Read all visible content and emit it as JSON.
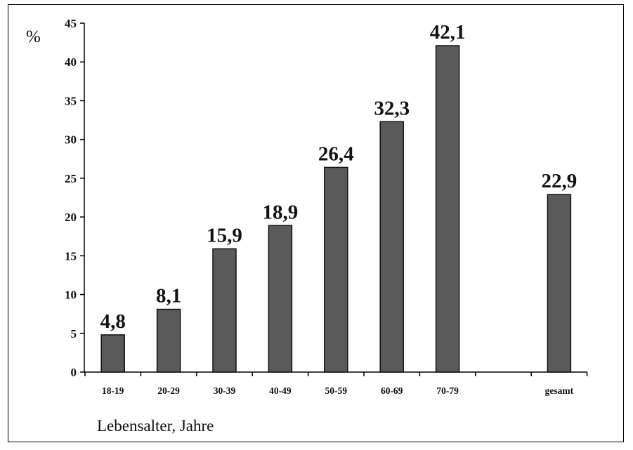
{
  "chart_data": {
    "type": "bar",
    "categories": [
      "18-19",
      "20-29",
      "30-39",
      "40-49",
      "50-59",
      "60-69",
      "70-79",
      "",
      "gesamt"
    ],
    "values": [
      4.8,
      8.1,
      15.9,
      18.9,
      26.4,
      32.3,
      42.1,
      null,
      22.9
    ],
    "value_labels": [
      "4,8",
      "8,1",
      "15,9",
      "18,9",
      "26,4",
      "32,3",
      "42,1",
      "",
      "22,9"
    ],
    "ylim": [
      0,
      45
    ],
    "yticks": [
      0,
      5,
      10,
      15,
      20,
      25,
      30,
      35,
      40,
      45
    ],
    "ylabel": "%",
    "xlabel": "Lebensalter, Jahre",
    "title": "",
    "grid": false,
    "bar_color": "#5a5a5a",
    "legend": "none"
  }
}
